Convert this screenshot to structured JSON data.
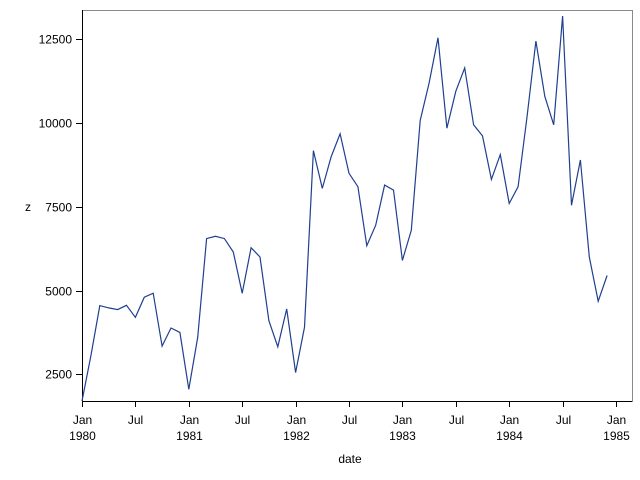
{
  "chart_data": {
    "type": "line",
    "title": "",
    "xlabel": "date",
    "ylabel": "z",
    "x": [
      "1980-01",
      "1980-02",
      "1980-03",
      "1980-04",
      "1980-05",
      "1980-06",
      "1980-07",
      "1980-08",
      "1980-09",
      "1980-10",
      "1980-11",
      "1980-12",
      "1981-01",
      "1981-02",
      "1981-03",
      "1981-04",
      "1981-05",
      "1981-06",
      "1981-07",
      "1981-08",
      "1981-09",
      "1981-10",
      "1981-11",
      "1981-12",
      "1982-01",
      "1982-02",
      "1982-03",
      "1982-04",
      "1982-05",
      "1982-06",
      "1982-07",
      "1982-08",
      "1982-09",
      "1982-10",
      "1982-11",
      "1982-12",
      "1983-01",
      "1983-02",
      "1983-03",
      "1983-04",
      "1983-05",
      "1983-06",
      "1983-07",
      "1983-08",
      "1983-09",
      "1983-10",
      "1983-11",
      "1983-12",
      "1984-01",
      "1984-02",
      "1984-03",
      "1984-04",
      "1984-05",
      "1984-06",
      "1984-07",
      "1984-08",
      "1984-09",
      "1984-10",
      "1984-11",
      "1984-12"
    ],
    "series": [
      {
        "values": [
          1700,
          3050,
          4550,
          4480,
          4430,
          4560,
          4200,
          4800,
          4920,
          3340,
          3880,
          3750,
          2050,
          3600,
          6550,
          6620,
          6550,
          6150,
          4920,
          6280,
          6000,
          4100,
          3320,
          4450,
          2550,
          3900,
          9180,
          8050,
          9000,
          9680,
          8500,
          8100,
          6340,
          6950,
          8150,
          8000,
          5900,
          6800,
          10080,
          11200,
          12550,
          9850,
          10950,
          11650,
          9950,
          9620,
          8320,
          9060,
          7600,
          8100,
          10180,
          12450,
          10800,
          9950,
          13200,
          7550,
          8900,
          6000,
          4680,
          5450
        ]
      }
    ],
    "x_ticks": [
      {
        "date": "1980-01",
        "month": "Jan",
        "year": "1980"
      },
      {
        "date": "1980-07",
        "month": "Jul",
        "year": ""
      },
      {
        "date": "1981-01",
        "month": "Jan",
        "year": "1981"
      },
      {
        "date": "1981-07",
        "month": "Jul",
        "year": ""
      },
      {
        "date": "1982-01",
        "month": "Jan",
        "year": "1982"
      },
      {
        "date": "1982-07",
        "month": "Jul",
        "year": ""
      },
      {
        "date": "1983-01",
        "month": "Jan",
        "year": "1983"
      },
      {
        "date": "1983-07",
        "month": "Jul",
        "year": ""
      },
      {
        "date": "1984-01",
        "month": "Jan",
        "year": "1984"
      },
      {
        "date": "1984-07",
        "month": "Jul",
        "year": ""
      },
      {
        "date": "1985-01",
        "month": "Jan",
        "year": "1985"
      }
    ],
    "y_ticks": [
      2500,
      5000,
      7500,
      10000,
      12500
    ],
    "xlim": [
      "1980-01",
      "1985-01"
    ],
    "ylim": [
      1700,
      13200
    ],
    "grid": false,
    "line_color": "#1f3f8f"
  }
}
